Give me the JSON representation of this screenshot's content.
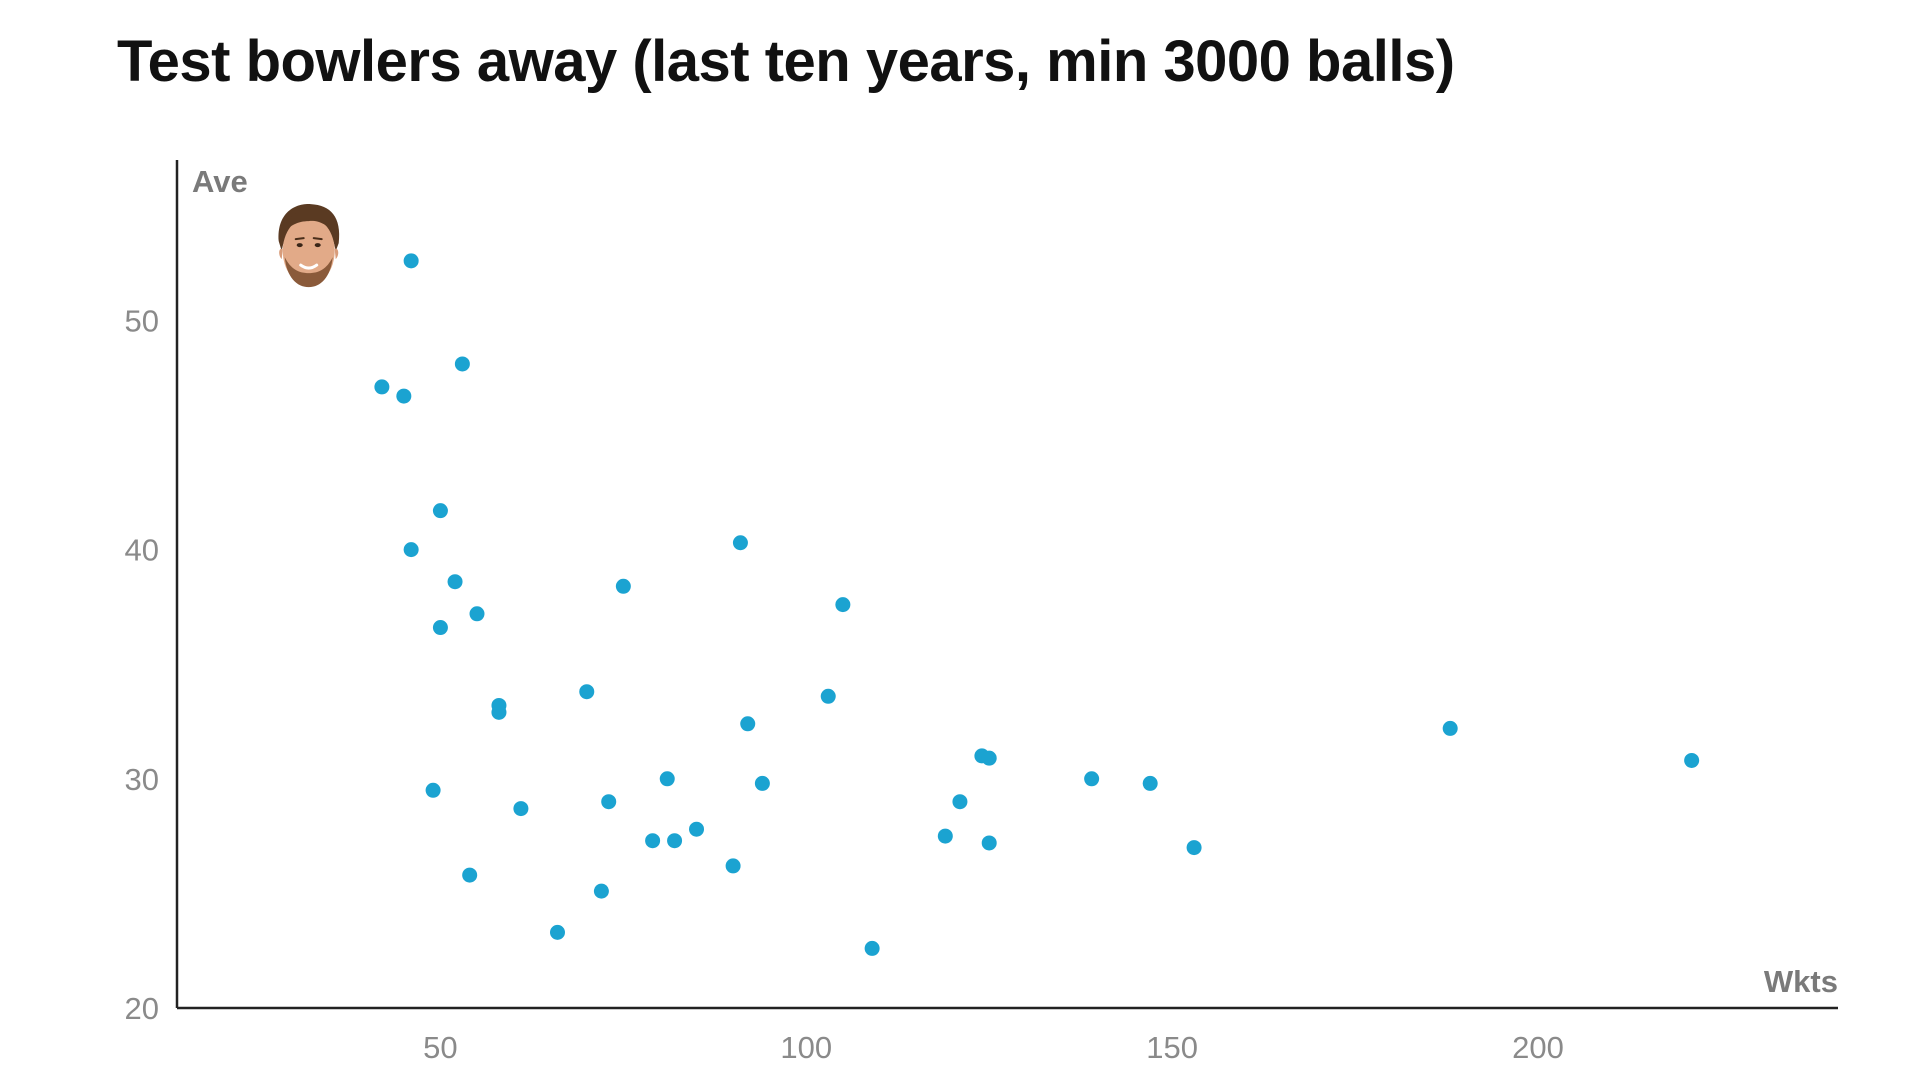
{
  "chart_data": {
    "type": "scatter",
    "title": "Test bowlers away (last ten years, min 3000 balls)",
    "xlabel": "Wkts",
    "ylabel": "Ave",
    "xlim": [
      14,
      241
    ],
    "ylim": [
      20,
      57
    ],
    "xticks": [
      50,
      100,
      150,
      200
    ],
    "yticks": [
      20,
      30,
      40,
      50
    ],
    "grid": false,
    "point_color": "#1ba3d1",
    "highlight_marker": {
      "x": 32,
      "y": 53.2,
      "icon": "player-face-icon"
    },
    "points": [
      {
        "x": 46,
        "y": 52.6
      },
      {
        "x": 42,
        "y": 47.1
      },
      {
        "x": 45,
        "y": 46.7
      },
      {
        "x": 53,
        "y": 48.1
      },
      {
        "x": 50,
        "y": 41.7
      },
      {
        "x": 46,
        "y": 40.0
      },
      {
        "x": 52,
        "y": 38.6
      },
      {
        "x": 55,
        "y": 37.2
      },
      {
        "x": 50,
        "y": 36.6
      },
      {
        "x": 58,
        "y": 33.2
      },
      {
        "x": 58,
        "y": 32.9
      },
      {
        "x": 49,
        "y": 29.5
      },
      {
        "x": 61,
        "y": 28.7
      },
      {
        "x": 54,
        "y": 25.8
      },
      {
        "x": 66,
        "y": 23.3
      },
      {
        "x": 72,
        "y": 25.1
      },
      {
        "x": 70,
        "y": 33.8
      },
      {
        "x": 73,
        "y": 29.0
      },
      {
        "x": 75,
        "y": 38.4
      },
      {
        "x": 79,
        "y": 27.3
      },
      {
        "x": 81,
        "y": 30.0
      },
      {
        "x": 82,
        "y": 27.3
      },
      {
        "x": 85,
        "y": 27.8
      },
      {
        "x": 90,
        "y": 26.2
      },
      {
        "x": 91,
        "y": 40.3
      },
      {
        "x": 92,
        "y": 32.4
      },
      {
        "x": 94,
        "y": 29.8
      },
      {
        "x": 103,
        "y": 33.6
      },
      {
        "x": 105,
        "y": 37.6
      },
      {
        "x": 109,
        "y": 22.6
      },
      {
        "x": 119,
        "y": 27.5
      },
      {
        "x": 121,
        "y": 29.0
      },
      {
        "x": 124,
        "y": 31.0
      },
      {
        "x": 125,
        "y": 30.9
      },
      {
        "x": 125,
        "y": 27.2
      },
      {
        "x": 139,
        "y": 30.0
      },
      {
        "x": 147,
        "y": 29.8
      },
      {
        "x": 153,
        "y": 27.0
      },
      {
        "x": 188,
        "y": 32.2
      },
      {
        "x": 221,
        "y": 30.8
      }
    ]
  }
}
